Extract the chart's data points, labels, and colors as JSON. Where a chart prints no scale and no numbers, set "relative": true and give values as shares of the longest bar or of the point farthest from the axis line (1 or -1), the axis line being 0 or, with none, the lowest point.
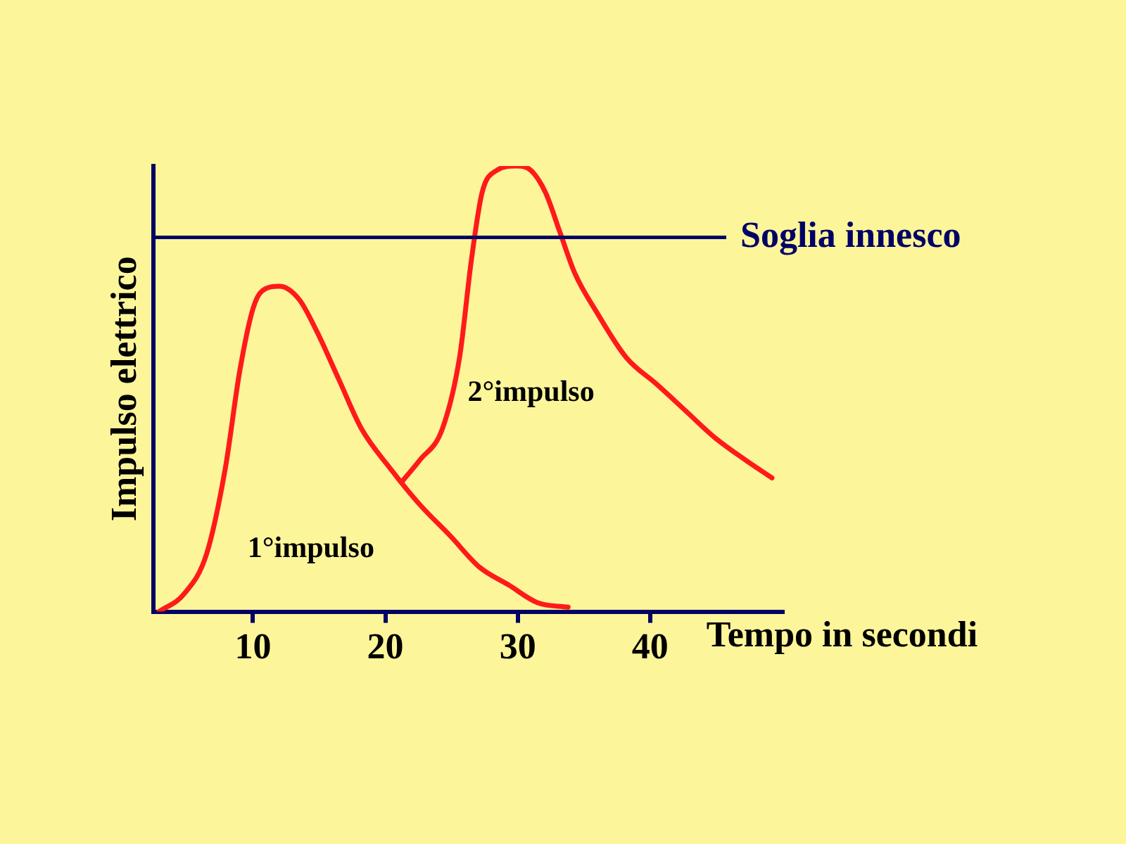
{
  "chart_data": {
    "type": "line",
    "relative": true,
    "xlabel": "Tempo in secondi",
    "ylabel": "Impulso elettrico",
    "xlim": [
      2.5,
      50
    ],
    "xticks": [
      10,
      20,
      30,
      40
    ],
    "grid": false,
    "legend": false,
    "marker": "none",
    "line_style": "solid",
    "series": [
      {
        "color": "#ff1a1a",
        "x": [
          2.9,
          4.8,
          6.5,
          7.9,
          9.0,
          10.0,
          10.7,
          12.0,
          13.5,
          14.8,
          16.5,
          18.2,
          20.4,
          22.6,
          24.9,
          27.1,
          29.3,
          31.5,
          33.8
        ],
        "values": [
          0,
          0.04,
          0.13,
          0.32,
          0.54,
          0.68,
          0.72,
          0.73,
          0.7,
          0.63,
          0.52,
          0.41,
          0.32,
          0.24,
          0.17,
          0.1,
          0.06,
          0.02,
          0.01
        ]
      },
      {
        "color": "#ff1a1a",
        "x": [
          21.2,
          22.6,
          24.3,
          25.6,
          26.5,
          27.3,
          28.4,
          29.9,
          31.0,
          32.1,
          33.2,
          34.3,
          36.0,
          38.2,
          40.5,
          42.7,
          44.9,
          47.2,
          49.2
        ],
        "values": [
          0.29,
          0.34,
          0.41,
          0.57,
          0.79,
          0.94,
          0.99,
          1.0,
          0.99,
          0.94,
          0.85,
          0.76,
          0.67,
          0.57,
          0.51,
          0.45,
          0.39,
          0.34,
          0.3
        ]
      }
    ],
    "ref_lines": [
      {
        "axis": "y",
        "value": 0.84,
        "label": "Soglia innesco",
        "color": "#000066"
      }
    ],
    "annotations": [
      "1°impulso",
      "2°impulso"
    ]
  }
}
